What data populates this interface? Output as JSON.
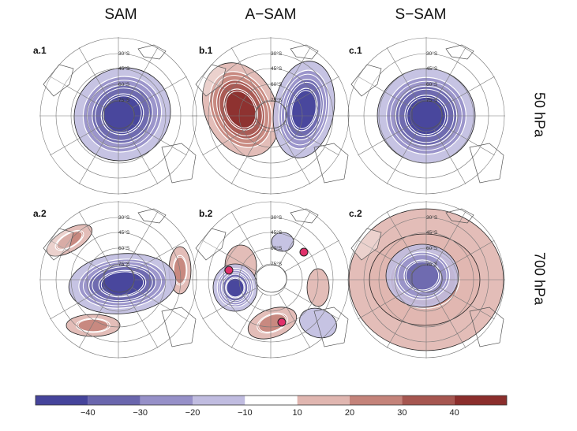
{
  "columns": [
    "SAM",
    "A−SAM",
    "S−SAM"
  ],
  "rows": [
    "50 hPa",
    "700 hPa"
  ],
  "panels": [
    {
      "label": "a.1"
    },
    {
      "label": "b.1"
    },
    {
      "label": "c.1"
    },
    {
      "label": "a.2"
    },
    {
      "label": "b.2"
    },
    {
      "label": "c.2"
    }
  ],
  "latitude_labels": [
    "30°S",
    "45°S",
    "60°S",
    "75°S"
  ],
  "colorbar": {
    "ticks": [
      "−40",
      "−30",
      "−20",
      "−10",
      "10",
      "20",
      "30",
      "40"
    ],
    "colors": [
      "#45449b",
      "#6a66ad",
      "#9690c8",
      "#c0bce0",
      "#ffffff",
      "#e0b6b0",
      "#c4837a",
      "#a65650",
      "#8b2e2c"
    ]
  },
  "markers": {
    "color": "#e0306a"
  }
}
